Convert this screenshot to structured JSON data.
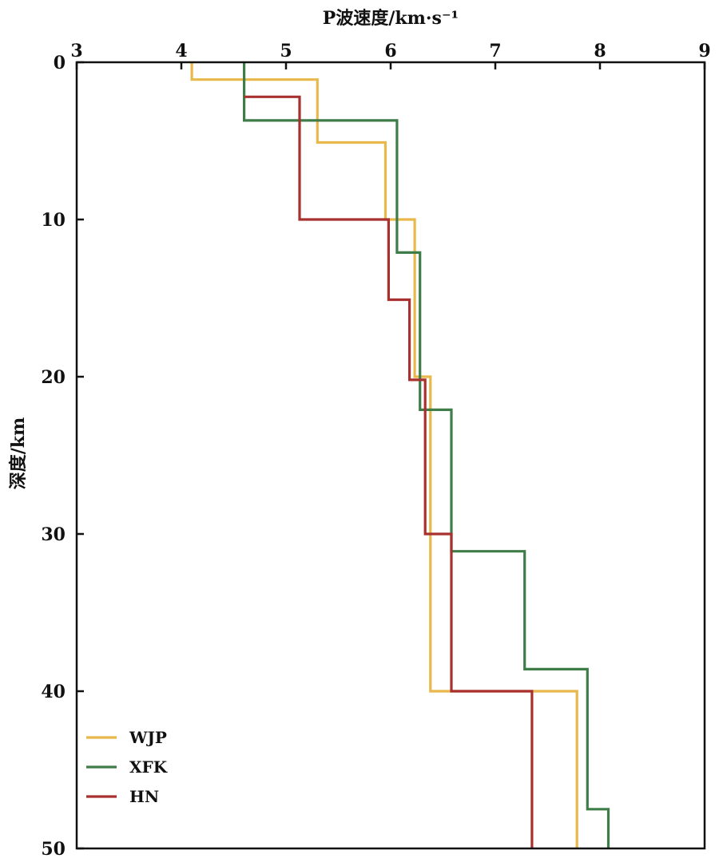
{
  "chart_data": {
    "type": "line",
    "title": "",
    "xlabel": "P波速度/km·s⁻¹",
    "ylabel": "深度/km",
    "xlim": [
      3,
      9
    ],
    "ylim": [
      0,
      50
    ],
    "y_inverted": true,
    "x_axis_position": "top",
    "x_ticks": [
      "3",
      "4",
      "5",
      "6",
      "7",
      "8",
      "9"
    ],
    "y_ticks": [
      "0",
      "10",
      "20",
      "30",
      "40",
      "50"
    ],
    "grid": false,
    "legend_position": "bottom-left",
    "series": [
      {
        "name": "WJP",
        "color": "#E8B84A",
        "points": [
          [
            4.1,
            0
          ],
          [
            4.1,
            1.1
          ],
          [
            5.3,
            1.1
          ],
          [
            5.3,
            5.1
          ],
          [
            5.95,
            5.1
          ],
          [
            5.95,
            10
          ],
          [
            6.23,
            10
          ],
          [
            6.23,
            20
          ],
          [
            6.38,
            20
          ],
          [
            6.38,
            40
          ],
          [
            7.78,
            40
          ],
          [
            7.78,
            50
          ]
        ]
      },
      {
        "name": "XFK",
        "color": "#3E7D48",
        "points": [
          [
            4.6,
            0
          ],
          [
            4.6,
            3.7
          ],
          [
            6.06,
            3.7
          ],
          [
            6.06,
            12.1
          ],
          [
            6.28,
            12.1
          ],
          [
            6.28,
            22.1
          ],
          [
            6.58,
            22.1
          ],
          [
            6.58,
            31.1
          ],
          [
            7.28,
            31.1
          ],
          [
            7.28,
            38.6
          ],
          [
            7.88,
            38.6
          ],
          [
            7.88,
            47.5
          ],
          [
            8.08,
            47.5
          ],
          [
            8.08,
            50
          ]
        ]
      },
      {
        "name": "HN",
        "color": "#A8302E",
        "points": [
          [
            4.6,
            2.2
          ],
          [
            5.13,
            2.2
          ],
          [
            5.13,
            10
          ],
          [
            5.98,
            10
          ],
          [
            5.98,
            15.1
          ],
          [
            6.18,
            15.1
          ],
          [
            6.18,
            20.2
          ],
          [
            6.33,
            20.2
          ],
          [
            6.33,
            30
          ],
          [
            6.58,
            30
          ],
          [
            6.58,
            40
          ],
          [
            7.35,
            40
          ],
          [
            7.35,
            50
          ]
        ]
      }
    ]
  }
}
